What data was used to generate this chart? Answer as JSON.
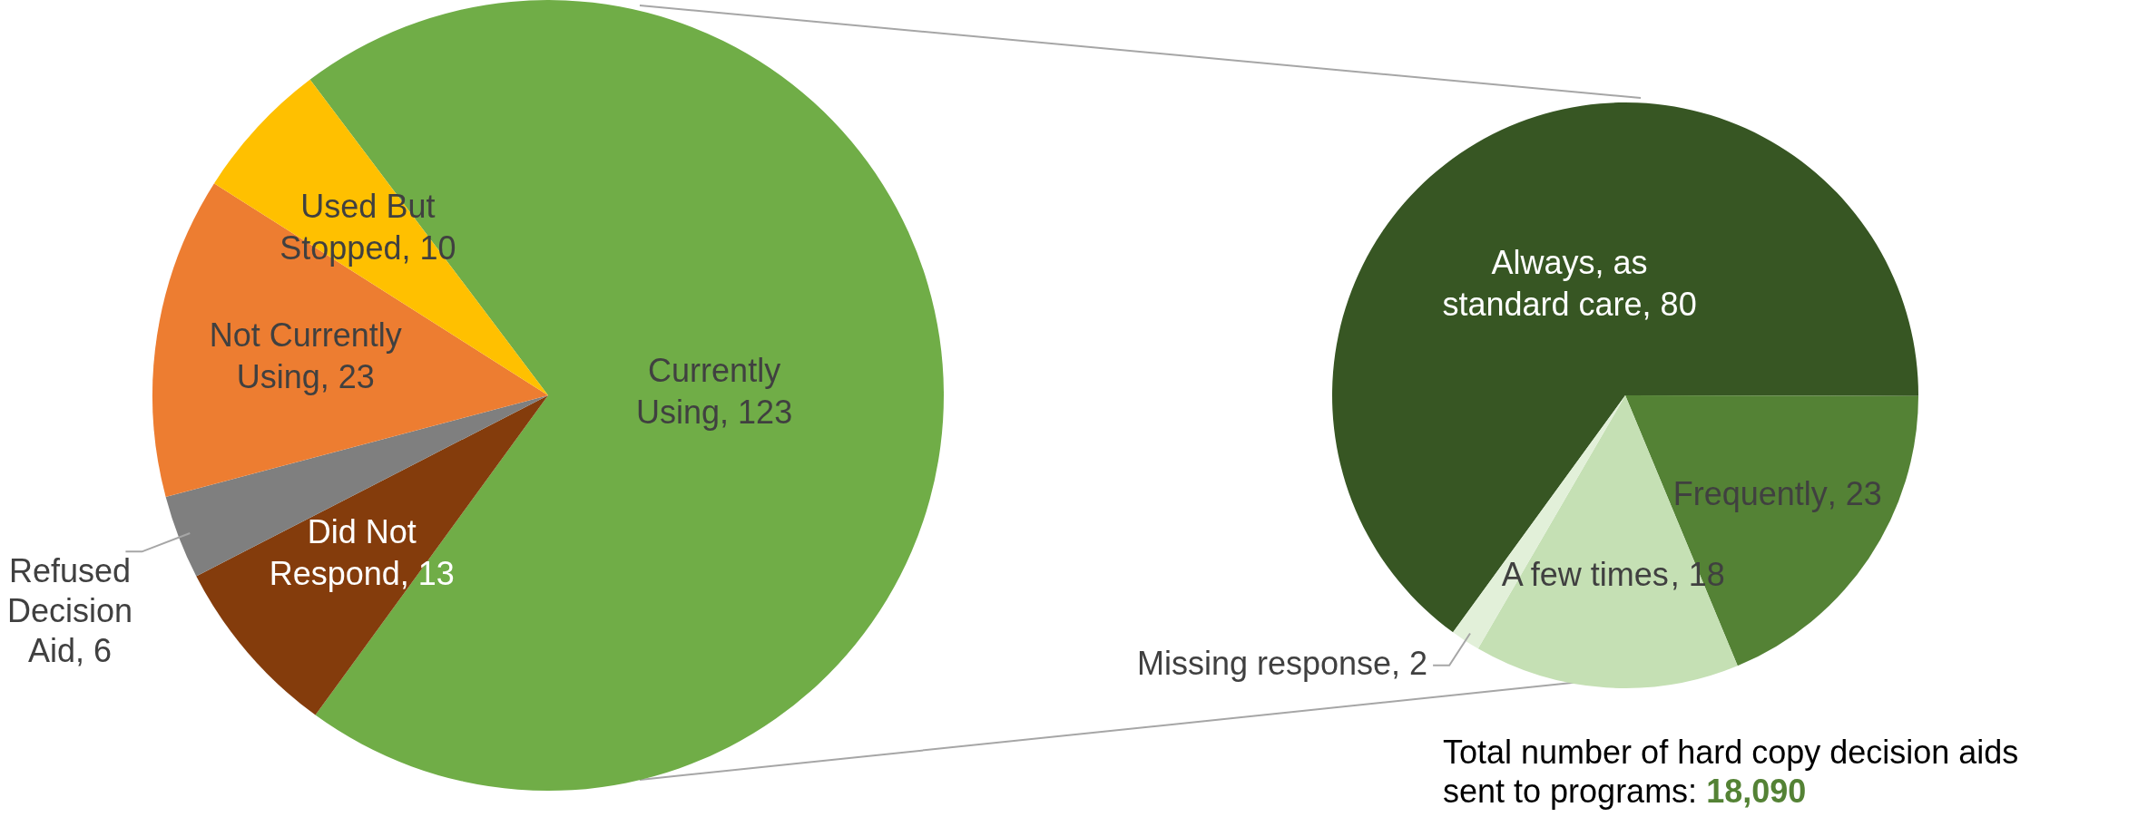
{
  "chart_data": [
    {
      "type": "pie",
      "categories": [
        "Currently Using",
        "Did Not Respond",
        "Refused Decision Aid",
        "Not Currently Using",
        "Used But Stopped"
      ],
      "values": [
        123,
        13,
        6,
        23,
        10
      ],
      "colors": [
        "#70ad47",
        "#843c0c",
        "#7f7f7f",
        "#ed7d31",
        "#ffc000"
      ],
      "value_labels": [
        ", 123",
        ", 13",
        ", 6",
        ", 23",
        ", 10"
      ]
    },
    {
      "type": "pie",
      "categories": [
        "Always, as standard care",
        "Frequently",
        "A few times",
        "Missing response"
      ],
      "values": [
        80,
        23,
        18,
        2
      ],
      "colors": [
        "#375623",
        "#548235",
        "#c5e0b4",
        "#e2f0d9"
      ],
      "value_labels": [
        ", 80",
        ", 23",
        ", 18",
        ", 2"
      ],
      "annotations": [
        "Total number of hard copy decision aids sent to programs: 18,090"
      ]
    }
  ]
}
